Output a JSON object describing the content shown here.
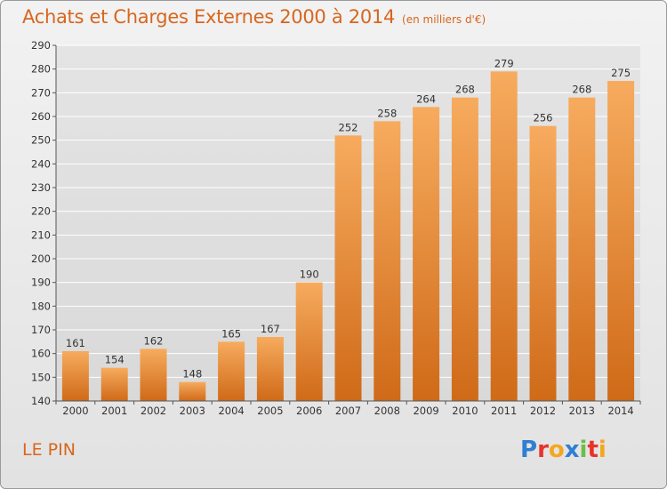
{
  "header": {
    "title": "Achats et Charges Externes 2000 à 2014",
    "subtitle": "(en milliers d'€)"
  },
  "footer": {
    "place": "LE PIN",
    "logo_text": "Proxiti",
    "logo_colors": [
      "#2f7fd3",
      "#e8332a",
      "#f4a71e",
      "#2f7fd3",
      "#6cbd45",
      "#e8332a",
      "#f4a71e"
    ]
  },
  "colors": {
    "accent": "#d8661e",
    "bar_top": "#f7ab5e",
    "bar_bottom": "#cf6a18",
    "grid": "#ffffff",
    "axis": "#555555"
  },
  "chart_data": {
    "type": "bar",
    "title": "Achats et Charges Externes 2000 à 2014",
    "subtitle": "(en milliers d'€)",
    "categories": [
      "2000",
      "2001",
      "2002",
      "2003",
      "2004",
      "2005",
      "2006",
      "2007",
      "2008",
      "2009",
      "2010",
      "2011",
      "2012",
      "2013",
      "2014"
    ],
    "values": [
      161,
      154,
      162,
      148,
      165,
      167,
      190,
      252,
      258,
      264,
      268,
      279,
      256,
      268,
      275
    ],
    "ylim": [
      140,
      290
    ],
    "yticks": [
      140,
      150,
      160,
      170,
      180,
      190,
      200,
      210,
      220,
      230,
      240,
      250,
      260,
      270,
      280,
      290
    ],
    "grid": true,
    "data_labels": true
  }
}
